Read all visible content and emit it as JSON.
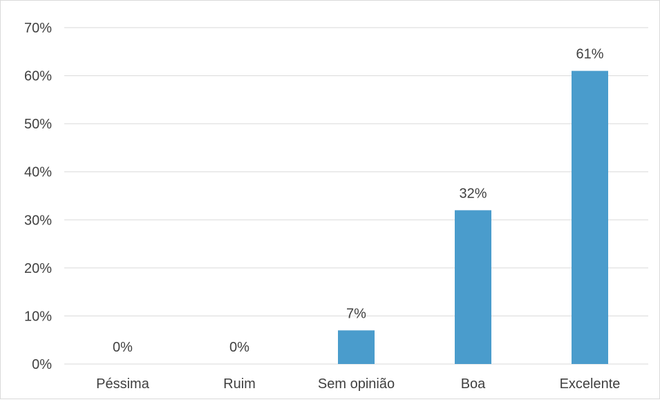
{
  "chart_data": {
    "type": "bar",
    "categories": [
      "Péssima",
      "Ruim",
      "Sem opinião",
      "Boa",
      "Excelente"
    ],
    "values": [
      0,
      0,
      7,
      32,
      61
    ],
    "data_labels": [
      "0%",
      "0%",
      "7%",
      "32%",
      "61%"
    ],
    "y_ticks": [
      "0%",
      "10%",
      "20%",
      "30%",
      "40%",
      "50%",
      "60%",
      "70%"
    ],
    "ylim": [
      0,
      70
    ],
    "y_unit": "%",
    "grid": true,
    "legend": "none",
    "bar_color": "#4a9ccc",
    "grid_color": "#d9d9d9",
    "text_color": "#404040"
  }
}
